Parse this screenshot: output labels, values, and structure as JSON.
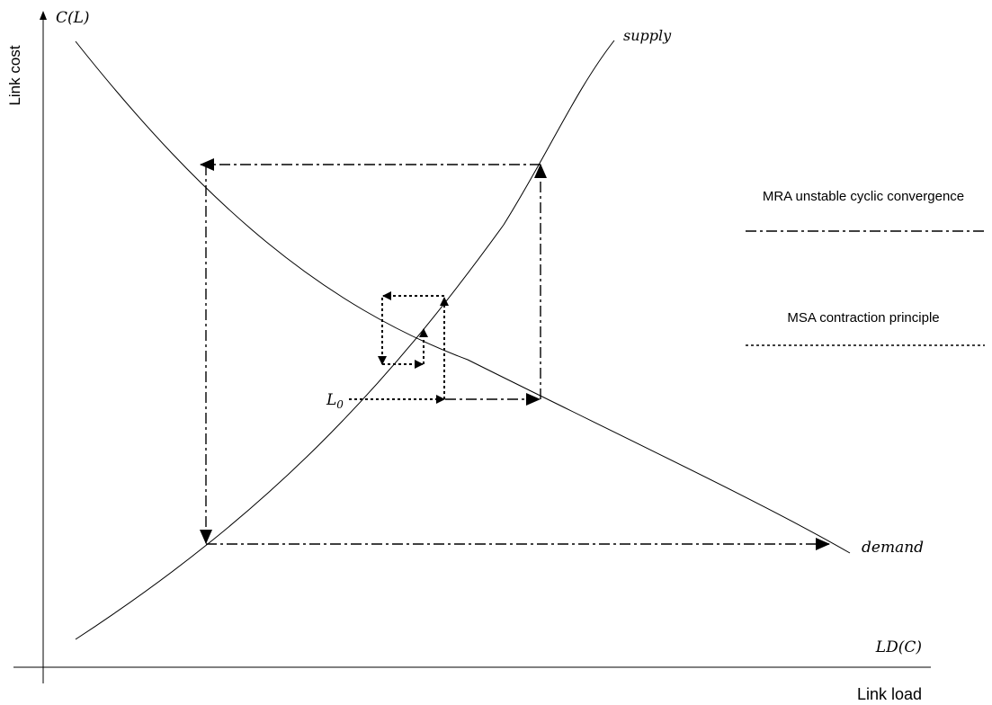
{
  "axes": {
    "y_title": "Link cost",
    "y_symbol": "C(L)",
    "x_title": "Link load",
    "x_symbol": "LD(C)"
  },
  "curves": {
    "supply_label": "supply",
    "demand_label": "demand"
  },
  "start_point": {
    "base": "L",
    "subscript": "0"
  },
  "legend": {
    "mra_label": "MRA unstable cyclic convergence",
    "msa_label": "MSA contraction principle"
  }
}
